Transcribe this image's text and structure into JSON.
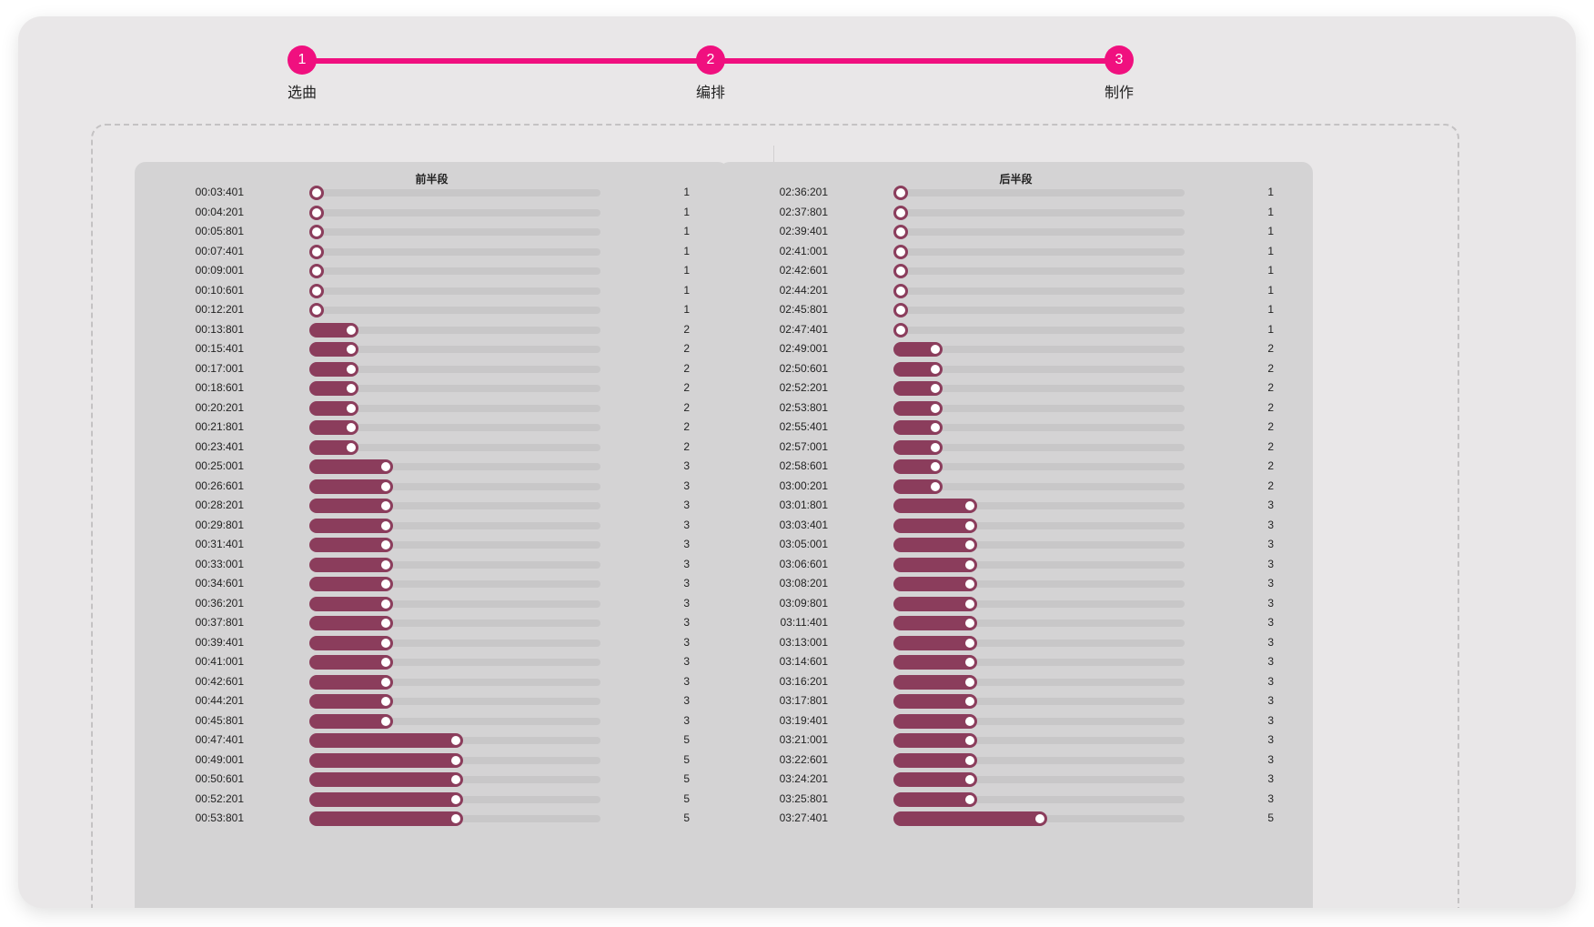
{
  "stepper": {
    "steps": [
      {
        "number": "1",
        "label": "选曲"
      },
      {
        "number": "2",
        "label": "编排"
      },
      {
        "number": "3",
        "label": "制作"
      }
    ],
    "active_color": "#f0107f"
  },
  "slider_max": 8,
  "left_panel": {
    "title": "前半段",
    "rows": [
      {
        "time": "00:03:401",
        "value": 1
      },
      {
        "time": "00:04:201",
        "value": 1
      },
      {
        "time": "00:05:801",
        "value": 1
      },
      {
        "time": "00:07:401",
        "value": 1
      },
      {
        "time": "00:09:001",
        "value": 1
      },
      {
        "time": "00:10:601",
        "value": 1
      },
      {
        "time": "00:12:201",
        "value": 1
      },
      {
        "time": "00:13:801",
        "value": 2
      },
      {
        "time": "00:15:401",
        "value": 2
      },
      {
        "time": "00:17:001",
        "value": 2
      },
      {
        "time": "00:18:601",
        "value": 2
      },
      {
        "time": "00:20:201",
        "value": 2
      },
      {
        "time": "00:21:801",
        "value": 2
      },
      {
        "time": "00:23:401",
        "value": 2
      },
      {
        "time": "00:25:001",
        "value": 3
      },
      {
        "time": "00:26:601",
        "value": 3
      },
      {
        "time": "00:28:201",
        "value": 3
      },
      {
        "time": "00:29:801",
        "value": 3
      },
      {
        "time": "00:31:401",
        "value": 3
      },
      {
        "time": "00:33:001",
        "value": 3
      },
      {
        "time": "00:34:601",
        "value": 3
      },
      {
        "time": "00:36:201",
        "value": 3
      },
      {
        "time": "00:37:801",
        "value": 3
      },
      {
        "time": "00:39:401",
        "value": 3
      },
      {
        "time": "00:41:001",
        "value": 3
      },
      {
        "time": "00:42:601",
        "value": 3
      },
      {
        "time": "00:44:201",
        "value": 3
      },
      {
        "time": "00:45:801",
        "value": 3
      },
      {
        "time": "00:47:401",
        "value": 5
      },
      {
        "time": "00:49:001",
        "value": 5
      },
      {
        "time": "00:50:601",
        "value": 5
      },
      {
        "time": "00:52:201",
        "value": 5
      },
      {
        "time": "00:53:801",
        "value": 5
      }
    ]
  },
  "right_panel": {
    "title": "后半段",
    "rows": [
      {
        "time": "02:36:201",
        "value": 1
      },
      {
        "time": "02:37:801",
        "value": 1
      },
      {
        "time": "02:39:401",
        "value": 1
      },
      {
        "time": "02:41:001",
        "value": 1
      },
      {
        "time": "02:42:601",
        "value": 1
      },
      {
        "time": "02:44:201",
        "value": 1
      },
      {
        "time": "02:45:801",
        "value": 1
      },
      {
        "time": "02:47:401",
        "value": 1
      },
      {
        "time": "02:49:001",
        "value": 2
      },
      {
        "time": "02:50:601",
        "value": 2
      },
      {
        "time": "02:52:201",
        "value": 2
      },
      {
        "time": "02:53:801",
        "value": 2
      },
      {
        "time": "02:55:401",
        "value": 2
      },
      {
        "time": "02:57:001",
        "value": 2
      },
      {
        "time": "02:58:601",
        "value": 2
      },
      {
        "time": "03:00:201",
        "value": 2
      },
      {
        "time": "03:01:801",
        "value": 3
      },
      {
        "time": "03:03:401",
        "value": 3
      },
      {
        "time": "03:05:001",
        "value": 3
      },
      {
        "time": "03:06:601",
        "value": 3
      },
      {
        "time": "03:08:201",
        "value": 3
      },
      {
        "time": "03:09:801",
        "value": 3
      },
      {
        "time": "03:11:401",
        "value": 3
      },
      {
        "time": "03:13:001",
        "value": 3
      },
      {
        "time": "03:14:601",
        "value": 3
      },
      {
        "time": "03:16:201",
        "value": 3
      },
      {
        "time": "03:17:801",
        "value": 3
      },
      {
        "time": "03:19:401",
        "value": 3
      },
      {
        "time": "03:21:001",
        "value": 3
      },
      {
        "time": "03:22:601",
        "value": 3
      },
      {
        "time": "03:24:201",
        "value": 3
      },
      {
        "time": "03:25:801",
        "value": 3
      },
      {
        "time": "03:27:401",
        "value": 5
      }
    ]
  }
}
